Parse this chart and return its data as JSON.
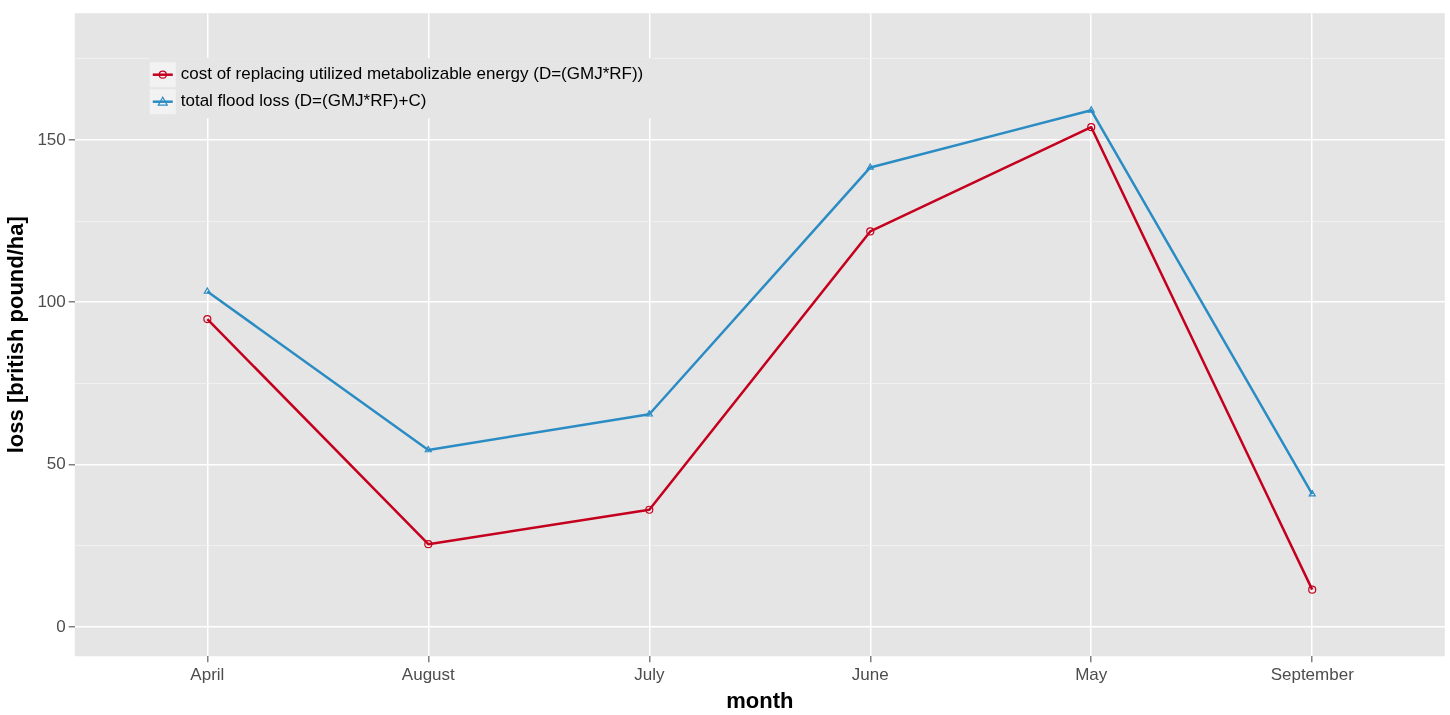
{
  "chart_data": {
    "type": "line",
    "xlabel": "month",
    "ylabel": "loss [british pound/ha]",
    "categories": [
      "April",
      "August",
      "July",
      "June",
      "May",
      "September"
    ],
    "series": [
      {
        "name": "cost of replacing utilized metabolizable energy (D=(GMJ*RF))",
        "color": "#c4001e",
        "marker": "circle",
        "values": [
          94.8,
          25.5,
          36.1,
          121.8,
          153.9,
          11.5
        ]
      },
      {
        "name": "total flood loss (D=(GMJ*RF)+C)",
        "color": "#2b8cc4",
        "marker": "triangle",
        "values": [
          103.3,
          54.5,
          65.5,
          141.5,
          159.1,
          40.9
        ]
      }
    ],
    "ylim": [
      -9,
      189
    ],
    "yticks": [
      0,
      {
        "value": 25,
        "label": null
      },
      50,
      {
        "value": 75,
        "label": null
      },
      100,
      {
        "value": 125,
        "label": null
      },
      150,
      {
        "value": 175,
        "label": null
      }
    ],
    "grid": true,
    "legend": "top left",
    "line_style": "solid"
  }
}
